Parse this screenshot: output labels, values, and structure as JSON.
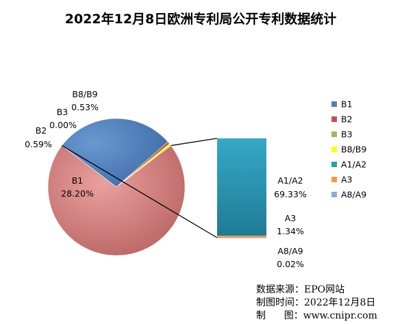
{
  "title": "2022年12月8日欧洲专利局公开专利数据统计",
  "chart_data": {
    "type": "bar-of-pie",
    "pie": [
      {
        "name": "B1",
        "label": "B1",
        "percent_label": "28.20%",
        "value": 28.2,
        "color": "#4F81BD"
      },
      {
        "name": "B2",
        "label": "B2",
        "percent_label": "0.59%",
        "value": 0.59,
        "color": "#C0504D"
      },
      {
        "name": "B3",
        "label": "B3",
        "percent_label": "0.00%",
        "value": 0.0,
        "color": "#9BBB59"
      },
      {
        "name": "B8/B9",
        "label": "B8/B9",
        "percent_label": "0.53%",
        "value": 0.53,
        "color": "#FFFF00"
      }
    ],
    "other": {
      "color": "#D98886",
      "value": 70.69
    },
    "bar": [
      {
        "name": "A1/A2",
        "label": "A1/A2",
        "percent_label": "69.33%",
        "value": 69.33,
        "color": "#2C9CB8"
      },
      {
        "name": "A3",
        "label": "A3",
        "percent_label": "1.34%",
        "value": 1.34,
        "color": "#F79646"
      },
      {
        "name": "A8/A9",
        "label": "A8/A9",
        "percent_label": "0.02%",
        "value": 0.02,
        "color": "#8EA9DB"
      }
    ],
    "legend": {
      "position": "right",
      "items": [
        {
          "label": "B1",
          "color": "#4F81BD"
        },
        {
          "label": "B2",
          "color": "#C0504D"
        },
        {
          "label": "B3",
          "color": "#9BBB59"
        },
        {
          "label": "B8/B9",
          "color": "#FFFF00"
        },
        {
          "label": "A1/A2",
          "color": "#2C9CB8"
        },
        {
          "label": "A3",
          "color": "#F79646"
        },
        {
          "label": "A8/A9",
          "color": "#8EA9DB"
        }
      ]
    }
  },
  "source": {
    "line1": "数据来源：EPO网站",
    "line2": "制图时间：2022年12月8日",
    "line3": "制      图：www.cnipr.com"
  }
}
